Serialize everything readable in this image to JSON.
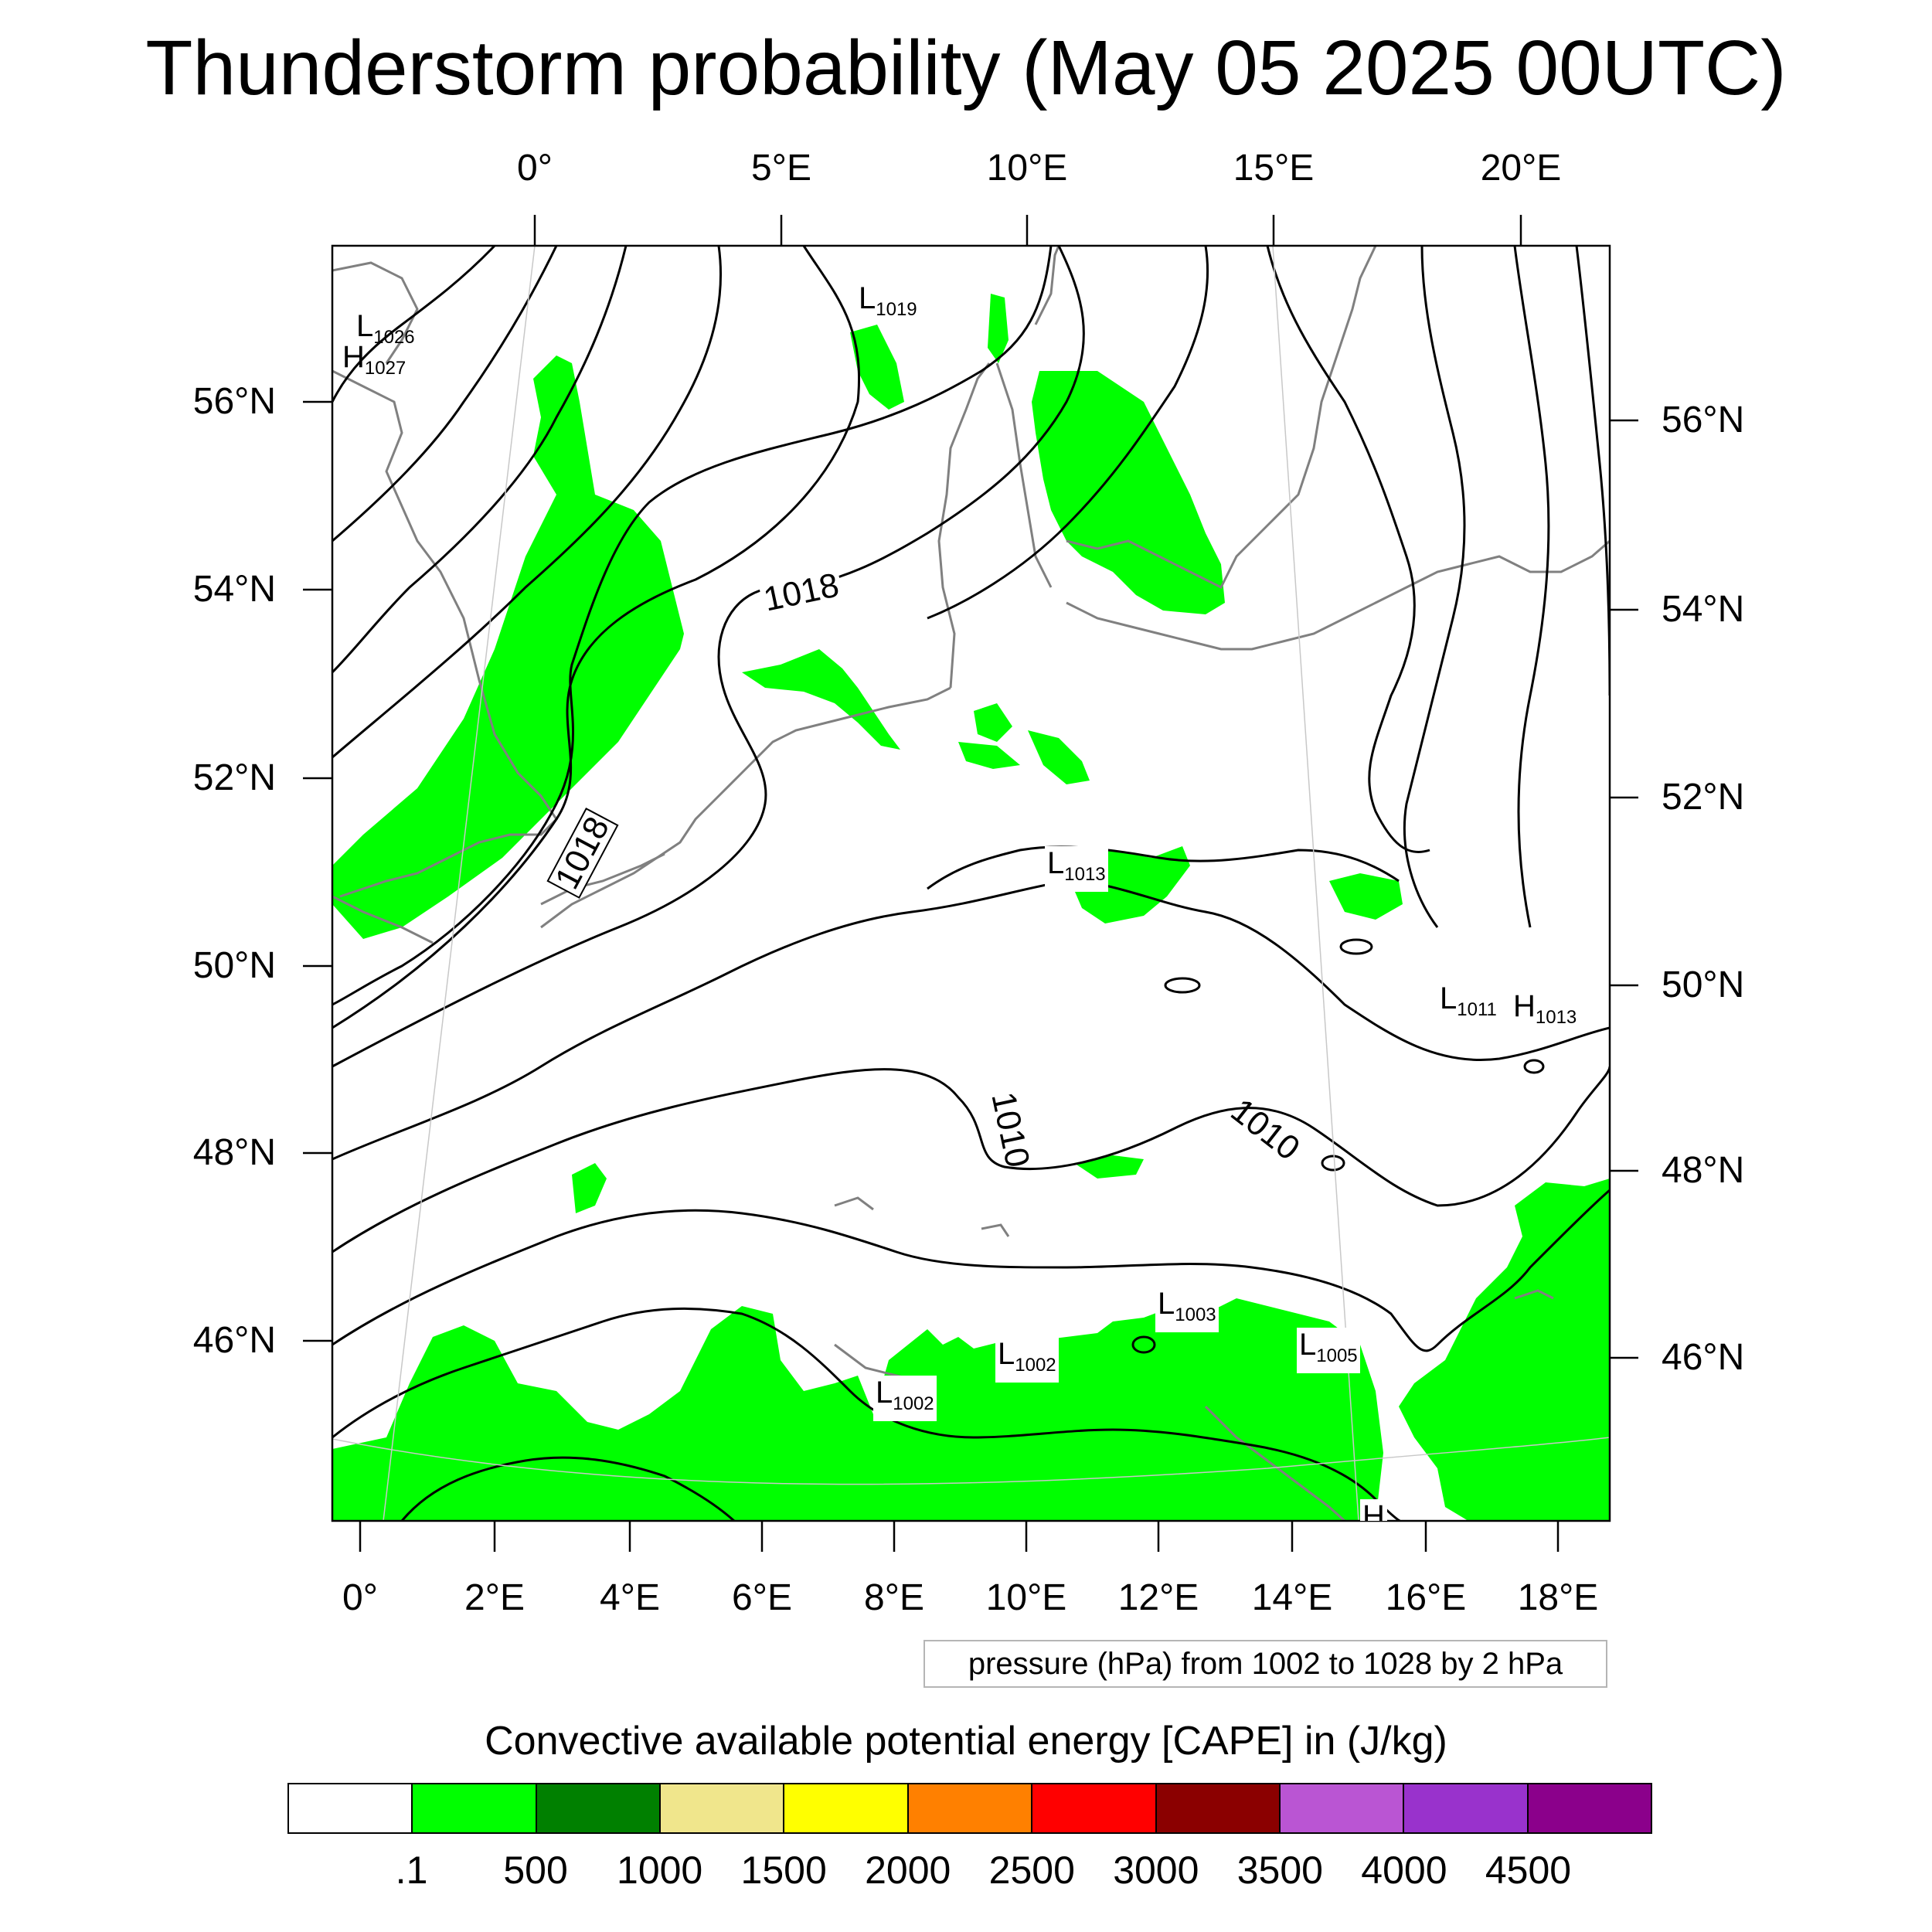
{
  "title": "Thunderstorm probability (May 05 2025 00UTC)",
  "axes": {
    "top_lon_labels": [
      "0°",
      "5°E",
      "10°E",
      "15°E",
      "20°E"
    ],
    "bottom_lon_labels": [
      "0°",
      "2°E",
      "4°E",
      "6°E",
      "8°E",
      "10°E",
      "12°E",
      "14°E",
      "16°E",
      "18°E"
    ],
    "left_lat_labels": [
      "56°N",
      "54°N",
      "52°N",
      "50°N",
      "48°N",
      "46°N"
    ],
    "right_lat_labels": [
      "56°N",
      "54°N",
      "52°N",
      "50°N",
      "48°N",
      "46°N"
    ]
  },
  "pressure_labels": {
    "contour_1018_a": "1018",
    "contour_1018_b": "1018",
    "contour_1010_a": "1010",
    "contour_1010_b": "1010"
  },
  "pressure_centers": [
    {
      "type": "L",
      "value": "1026"
    },
    {
      "type": "H",
      "value": "1027"
    },
    {
      "type": "L",
      "value": "1019"
    },
    {
      "type": "L",
      "value": "1013"
    },
    {
      "type": "L",
      "value": "1011"
    },
    {
      "type": "H",
      "value": "1013"
    },
    {
      "type": "L",
      "value": "1003"
    },
    {
      "type": "L",
      "value": "1002"
    },
    {
      "type": "L",
      "value": "1005"
    },
    {
      "type": "L",
      "value": "1002"
    },
    {
      "type": "H",
      "value": ""
    }
  ],
  "info_box": "pressure (hPa) from 1002 to 1028 by 2 hPa",
  "colorbar": {
    "title": "Convective available potential energy [CAPE] in (J/kg)",
    "colors": [
      "#ffffff",
      "#00ff00",
      "#008000",
      "#f0e68c",
      "#ffff00",
      "#ff8000",
      "#ff0000",
      "#8b0000",
      "#ba55d3",
      "#9932cc",
      "#8b008b"
    ],
    "ticks": [
      ".1",
      "500",
      "1000",
      "1500",
      "2000",
      "2500",
      "3000",
      "3500",
      "4000",
      "4500"
    ]
  },
  "colors": {
    "cape_fill": "#00ff00",
    "coast": "#808080",
    "isobar": "#000000"
  }
}
